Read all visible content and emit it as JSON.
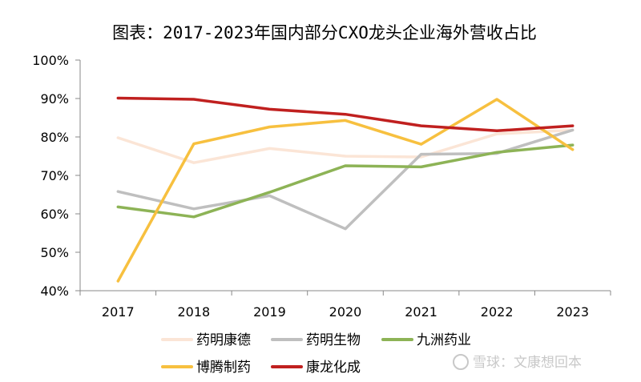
{
  "chart_data": {
    "type": "line",
    "title": "图表：2017-2023年国内部分CXO龙头企业海外营收占比",
    "xlabel": "",
    "ylabel": "",
    "categories": [
      "2017",
      "2018",
      "2019",
      "2020",
      "2021",
      "2022",
      "2023"
    ],
    "y_ticks": [
      "40%",
      "50%",
      "60%",
      "70%",
      "80%",
      "90%",
      "100%"
    ],
    "ylim": [
      40,
      100
    ],
    "grid": false,
    "legend_position": "bottom",
    "series": [
      {
        "name": "药明康德",
        "color": "#fbe5d6",
        "values": [
          79.8,
          73.3,
          77.0,
          75.0,
          74.8,
          80.8,
          81.8
        ]
      },
      {
        "name": "药明生物",
        "color": "#bfbfbf",
        "values": [
          65.8,
          61.3,
          64.7,
          56.1,
          75.5,
          75.7,
          81.8
        ]
      },
      {
        "name": "九洲药业",
        "color": "#8db356",
        "values": [
          61.8,
          59.2,
          65.6,
          72.5,
          72.2,
          76.0,
          77.9
        ]
      },
      {
        "name": "博腾制药",
        "color": "#f7c03f",
        "values": [
          42.5,
          78.2,
          82.6,
          84.3,
          78.1,
          89.8,
          76.7
        ]
      },
      {
        "name": "康龙化成",
        "color": "#c0201f",
        "values": [
          90.1,
          89.8,
          87.2,
          85.9,
          82.9,
          81.6,
          82.9
        ]
      }
    ]
  },
  "watermark": "雪球：文康想回本"
}
